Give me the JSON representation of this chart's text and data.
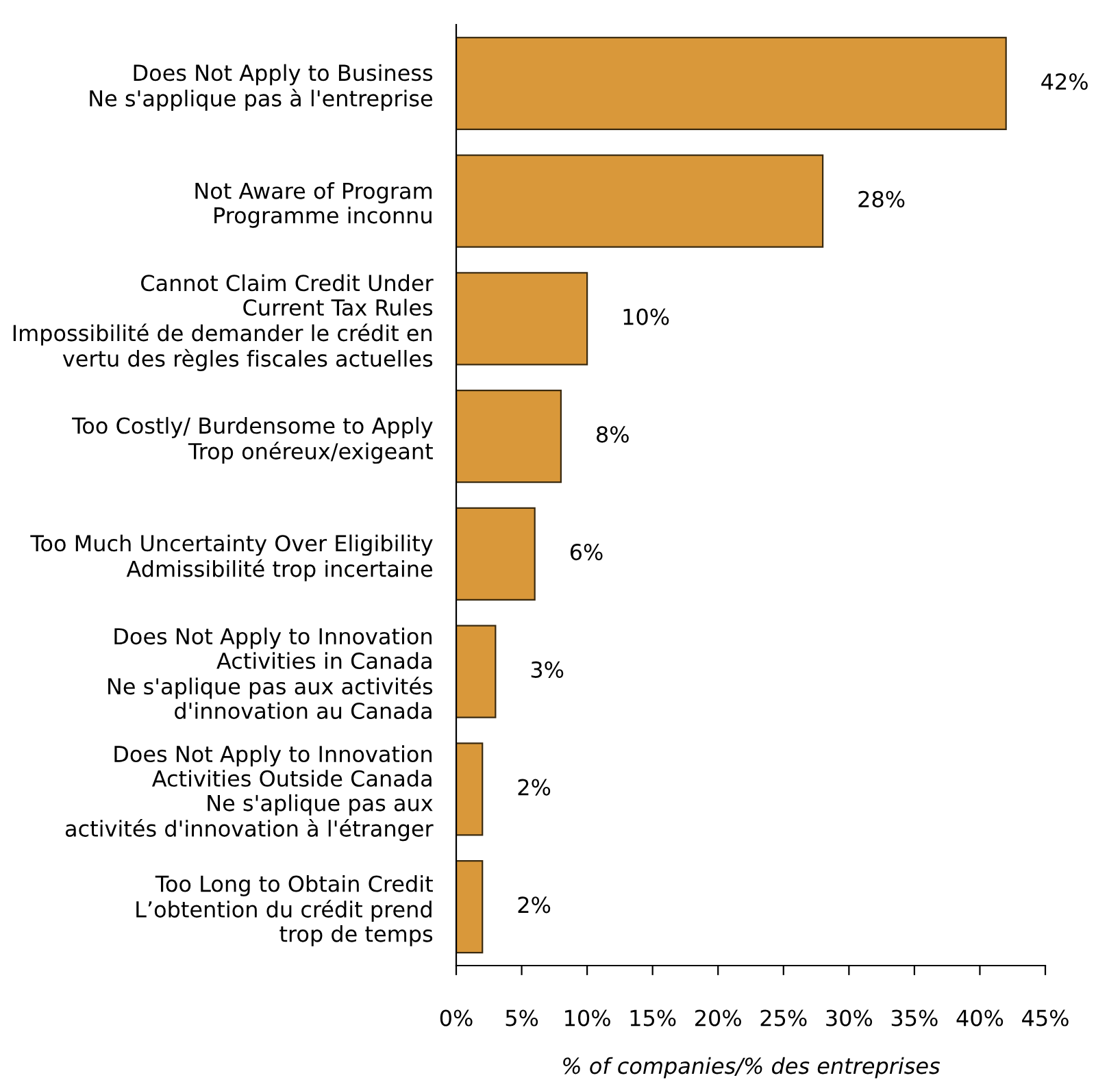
{
  "chart_data": {
    "type": "bar",
    "orientation": "horizontal",
    "categories": [
      "Does Not Apply to Business\nNe s'applique pas à l'entreprise",
      "Not Aware of Program\nProgramme inconnu",
      "Cannot Claim Credit Under\nCurrent Tax Rules\nImpossibilité de demander le crédit en\nvertu des règles fiscales actuelles",
      "Too Costly/ Burdensome to Apply\nTrop onéreux/exigeant",
      "Too Much Uncertainty Over Eligibility\nAdmissibilité trop incertaine",
      "Does Not Apply to Innovation\nActivities in Canada\nNe s'aplique pas aux activités\nd'innovation au Canada",
      "Does Not Apply to Innovation\nActivities Outside Canada\nNe s'aplique pas aux\nactivités d'innovation à l'étranger",
      "Too Long to Obtain Credit\nL’obtention du crédit prend\ntrop de temps"
    ],
    "values": [
      42,
      28,
      10,
      8,
      6,
      3,
      2,
      2
    ],
    "value_labels": [
      "42%",
      "28%",
      "10%",
      "8%",
      "6%",
      "3%",
      "2%",
      "2%"
    ],
    "color": "#d9983a",
    "xlabel": "% of companies/% des entreprises",
    "xlim": [
      0,
      45
    ],
    "xticks": [
      {
        "value": 0,
        "label": "0%"
      },
      {
        "value": 5,
        "label": "5%"
      },
      {
        "value": 10,
        "label": "10%"
      },
      {
        "value": 15,
        "label": "15%"
      },
      {
        "value": 20,
        "label": "20%"
      },
      {
        "value": 25,
        "label": "25%"
      },
      {
        "value": 30,
        "label": "30%"
      },
      {
        "value": 35,
        "label": "35%"
      },
      {
        "value": 40,
        "label": "40%"
      },
      {
        "value": 45,
        "label": "45%"
      }
    ],
    "grid": false,
    "legend": false
  }
}
